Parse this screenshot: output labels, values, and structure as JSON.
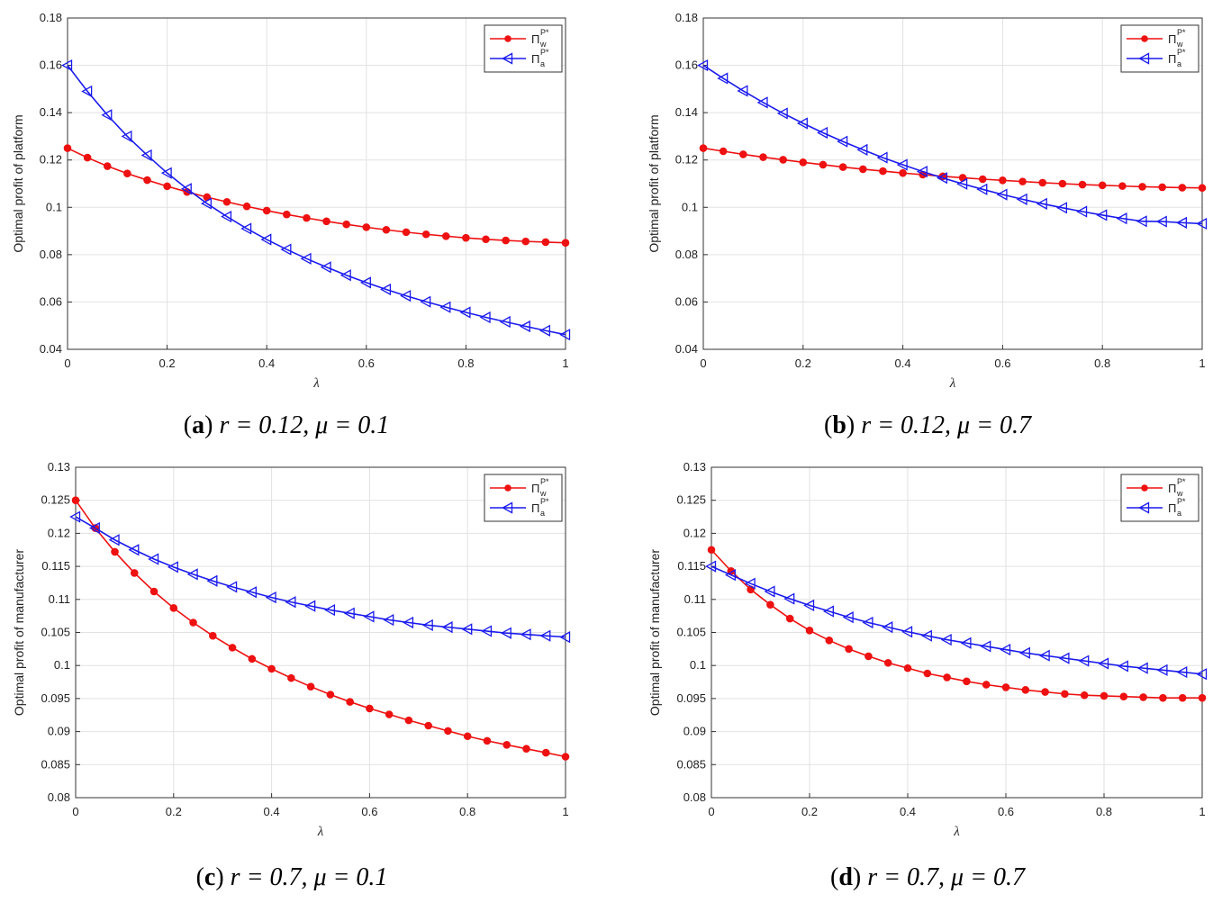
{
  "figure": {
    "legend": {
      "w": {
        "symbol": "Π",
        "sub": "w",
        "sup": "P*"
      },
      "a": {
        "symbol": "Π",
        "sub": "a",
        "sup": "P*"
      }
    }
  },
  "chart_data": [
    {
      "type": "line",
      "caption": {
        "label": "a",
        "text": "r = 0.12, μ = 0.1"
      },
      "xlabel": "λ",
      "ylabel": "Optimal profit of platform",
      "xlim": [
        0,
        1
      ],
      "ylim": [
        0.04,
        0.18
      ],
      "xticks": [
        "0",
        "0.2",
        "0.4",
        "0.6",
        "0.8",
        "1"
      ],
      "yticks": [
        "0.04",
        "0.06",
        "0.08",
        "0.1",
        "0.12",
        "0.14",
        "0.16",
        "0.18"
      ],
      "grid": true,
      "legend_position": "top-right",
      "x": [
        0,
        0.04,
        0.08,
        0.12,
        0.16,
        0.2,
        0.24,
        0.28,
        0.32,
        0.36,
        0.4,
        0.44,
        0.48,
        0.52,
        0.56,
        0.6,
        0.64,
        0.68,
        0.72,
        0.76,
        0.8,
        0.84,
        0.88,
        0.92,
        0.96,
        1
      ],
      "series": [
        {
          "name": "w",
          "color": "#ee1111",
          "marker": "dot",
          "values": [
            0.125,
            0.121,
            0.1174,
            0.1143,
            0.1115,
            0.1089,
            0.1065,
            0.1043,
            0.1023,
            0.1004,
            0.0986,
            0.097,
            0.0955,
            0.0941,
            0.0928,
            0.0916,
            0.0905,
            0.0895,
            0.0886,
            0.0878,
            0.0871,
            0.0865,
            0.086,
            0.0856,
            0.0853,
            0.085
          ]
        },
        {
          "name": "a",
          "color": "#1a1aee",
          "marker": "triangle-left",
          "values": [
            0.16,
            0.149,
            0.139,
            0.13,
            0.122,
            0.1145,
            0.1078,
            0.1016,
            0.0961,
            0.091,
            0.0864,
            0.0822,
            0.0783,
            0.0747,
            0.0713,
            0.0682,
            0.0653,
            0.0626,
            0.0601,
            0.0578,
            0.0556,
            0.0535,
            0.0516,
            0.0497,
            0.0479,
            0.0462
          ]
        }
      ]
    },
    {
      "type": "line",
      "caption": {
        "label": "b",
        "text": "r = 0.12, μ = 0.7"
      },
      "xlabel": "λ",
      "ylabel": "Optimal profit of platform",
      "xlim": [
        0,
        1
      ],
      "ylim": [
        0.04,
        0.18
      ],
      "xticks": [
        "0",
        "0.2",
        "0.4",
        "0.6",
        "0.8",
        "1"
      ],
      "yticks": [
        "0.04",
        "0.06",
        "0.08",
        "0.1",
        "0.12",
        "0.14",
        "0.16",
        "0.18"
      ],
      "grid": true,
      "legend_position": "top-right",
      "x": [
        0,
        0.04,
        0.08,
        0.12,
        0.16,
        0.2,
        0.24,
        0.28,
        0.32,
        0.36,
        0.4,
        0.44,
        0.48,
        0.52,
        0.56,
        0.6,
        0.64,
        0.68,
        0.72,
        0.76,
        0.8,
        0.84,
        0.88,
        0.92,
        0.96,
        1
      ],
      "series": [
        {
          "name": "w",
          "color": "#ee1111",
          "marker": "dot",
          "values": [
            0.125,
            0.1237,
            0.1224,
            0.1212,
            0.1201,
            0.119,
            0.118,
            0.117,
            0.1161,
            0.1153,
            0.1145,
            0.1138,
            0.1131,
            0.1125,
            0.1119,
            0.1114,
            0.1109,
            0.1104,
            0.11,
            0.1096,
            0.1093,
            0.109,
            0.1087,
            0.1085,
            0.1083,
            0.1082
          ]
        },
        {
          "name": "a",
          "color": "#1a1aee",
          "marker": "triangle-left",
          "values": [
            0.16,
            0.1545,
            0.1492,
            0.1443,
            0.1397,
            0.1355,
            0.1315,
            0.1278,
            0.1243,
            0.121,
            0.118,
            0.1151,
            0.1124,
            0.1099,
            0.1076,
            0.1054,
            0.1034,
            0.1015,
            0.0998,
            0.0982,
            0.0967,
            0.0953,
            0.0941,
            0.094,
            0.0935,
            0.0931
          ]
        }
      ]
    },
    {
      "type": "line",
      "caption": {
        "label": "c",
        "text": "r = 0.7, μ = 0.1"
      },
      "xlabel": "λ",
      "ylabel": "Optimal profit of manufacturer",
      "xlim": [
        0,
        1
      ],
      "ylim": [
        0.08,
        0.13
      ],
      "xticks": [
        "0",
        "0.2",
        "0.4",
        "0.6",
        "0.8",
        "1"
      ],
      "yticks": [
        "0.08",
        "0.085",
        "0.09",
        "0.095",
        "0.1",
        "0.105",
        "0.11",
        "0.115",
        "0.12",
        "0.125",
        "0.13"
      ],
      "grid": true,
      "legend_position": "top-right",
      "x": [
        0,
        0.04,
        0.08,
        0.12,
        0.16,
        0.2,
        0.24,
        0.28,
        0.32,
        0.36,
        0.4,
        0.44,
        0.48,
        0.52,
        0.56,
        0.6,
        0.64,
        0.68,
        0.72,
        0.76,
        0.8,
        0.84,
        0.88,
        0.92,
        0.96,
        1
      ],
      "series": [
        {
          "name": "w",
          "color": "#ee1111",
          "marker": "dot",
          "values": [
            0.125,
            0.1208,
            0.1172,
            0.114,
            0.1112,
            0.1087,
            0.1065,
            0.1045,
            0.1027,
            0.101,
            0.0995,
            0.0981,
            0.0968,
            0.0956,
            0.0945,
            0.0935,
            0.0926,
            0.0917,
            0.0909,
            0.0901,
            0.0893,
            0.0886,
            0.088,
            0.0874,
            0.0868,
            0.0862
          ]
        },
        {
          "name": "a",
          "color": "#1a1aee",
          "marker": "triangle-left",
          "values": [
            0.1225,
            0.1208,
            0.119,
            0.1175,
            0.1161,
            0.1149,
            0.1138,
            0.1128,
            0.1119,
            0.1111,
            0.1103,
            0.1096,
            0.109,
            0.1084,
            0.1079,
            0.1074,
            0.1069,
            0.1065,
            0.1061,
            0.1058,
            0.1055,
            0.1052,
            0.1049,
            0.1047,
            0.1045,
            0.1043
          ]
        }
      ]
    },
    {
      "type": "line",
      "caption": {
        "label": "d",
        "text": "r = 0.7, μ = 0.7"
      },
      "xlabel": "λ",
      "ylabel": "Optimal profit of manufacturer",
      "xlim": [
        0,
        1
      ],
      "ylim": [
        0.08,
        0.13
      ],
      "xticks": [
        "0",
        "0.2",
        "0.4",
        "0.6",
        "0.8",
        "1"
      ],
      "yticks": [
        "0.08",
        "0.085",
        "0.09",
        "0.095",
        "0.1",
        "0.105",
        "0.11",
        "0.115",
        "0.12",
        "0.125",
        "0.13"
      ],
      "grid": true,
      "legend_position": "top-right",
      "x": [
        0,
        0.04,
        0.08,
        0.12,
        0.16,
        0.2,
        0.24,
        0.28,
        0.32,
        0.36,
        0.4,
        0.44,
        0.48,
        0.52,
        0.56,
        0.6,
        0.64,
        0.68,
        0.72,
        0.76,
        0.8,
        0.84,
        0.88,
        0.92,
        0.96,
        1
      ],
      "series": [
        {
          "name": "w",
          "color": "#ee1111",
          "marker": "dot",
          "values": [
            0.1175,
            0.1143,
            0.1115,
            0.1092,
            0.1071,
            0.1053,
            0.1038,
            0.1025,
            0.1014,
            0.1004,
            0.0996,
            0.0988,
            0.0982,
            0.0976,
            0.0971,
            0.0967,
            0.0963,
            0.096,
            0.0957,
            0.0955,
            0.0954,
            0.0953,
            0.0952,
            0.0951,
            0.0951,
            0.0951
          ]
        },
        {
          "name": "a",
          "color": "#1a1aee",
          "marker": "triangle-left",
          "values": [
            0.115,
            0.1137,
            0.1124,
            0.1112,
            0.1101,
            0.1091,
            0.1082,
            0.1073,
            0.1065,
            0.1058,
            0.1051,
            0.1045,
            0.1039,
            0.1034,
            0.1029,
            0.1024,
            0.1019,
            0.1015,
            0.1011,
            0.1007,
            0.1003,
            0.0999,
            0.0996,
            0.0993,
            0.099,
            0.0987
          ]
        }
      ]
    }
  ]
}
